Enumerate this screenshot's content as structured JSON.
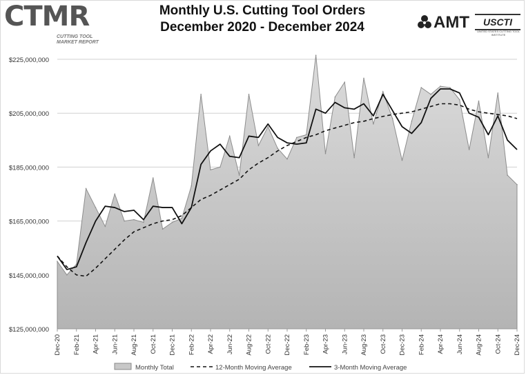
{
  "header": {
    "title_line1": "Monthly U.S. Cutting Tool Orders",
    "title_line2": "December 2020 - December 2024",
    "logo_left_brand": "CTMR",
    "logo_left_tagline": "CUTTING TOOL MARKET REPORT",
    "logo_right_amt": "AMT",
    "logo_right_usc": "USCTI",
    "logo_right_usc_sub": "UNITED STATES CUTTING TOOL INSTITUTE"
  },
  "chart_data": {
    "type": "area",
    "title": "Monthly U.S. Cutting Tool Orders December 2020 - December 2024",
    "xlabel": "",
    "ylabel": "",
    "ylim": [
      125000000,
      225000000
    ],
    "yticks": [
      125000000,
      145000000,
      165000000,
      185000000,
      205000000,
      225000000
    ],
    "ytick_labels": [
      "$125,000,000",
      "$145,000,000",
      "$165,000,000",
      "$185,000,000",
      "$205,000,000",
      "$225,000,000"
    ],
    "grid": true,
    "categories": [
      "Dec-20",
      "Jan-21",
      "Feb-21",
      "Mar-21",
      "Apr-21",
      "May-21",
      "Jun-21",
      "Jul-21",
      "Aug-21",
      "Sep-21",
      "Oct-21",
      "Nov-21",
      "Dec-21",
      "Jan-22",
      "Feb-22",
      "Mar-22",
      "Apr-22",
      "May-22",
      "Jun-22",
      "Jul-22",
      "Aug-22",
      "Sep-22",
      "Oct-22",
      "Nov-22",
      "Dec-22",
      "Jan-23",
      "Feb-23",
      "Mar-23",
      "Apr-23",
      "May-23",
      "Jun-23",
      "Jul-23",
      "Aug-23",
      "Sep-23",
      "Oct-23",
      "Nov-23",
      "Dec-23",
      "Jan-24",
      "Feb-24",
      "Mar-24",
      "Apr-24",
      "May-24",
      "Jun-24",
      "Jul-24",
      "Aug-24",
      "Sep-24",
      "Oct-24",
      "Nov-24",
      "Dec-24"
    ],
    "tick_labels": [
      "Dec-20",
      "Feb-21",
      "Apr-21",
      "Jun-21",
      "Aug-21",
      "Oct-21",
      "Dec-21",
      "Feb-22",
      "Apr-22",
      "Jun-22",
      "Aug-22",
      "Oct-22",
      "Dec-22",
      "Feb-23",
      "Apr-23",
      "Jun-23",
      "Aug-23",
      "Oct-23",
      "Dec-23",
      "Feb-24",
      "Apr-24",
      "Jun-24",
      "Aug-24",
      "Oct-24",
      "Dec-24"
    ],
    "legend_position": "bottom",
    "series": [
      {
        "name": "Monthly Total",
        "style": "area",
        "values": [
          150000000,
          145000000,
          149000000,
          177000000,
          170000000,
          163000000,
          175000000,
          165000000,
          165500000,
          164500000,
          181000000,
          162000000,
          164500000,
          166000000,
          178000000,
          212000000,
          184000000,
          185000000,
          196500000,
          182000000,
          212000000,
          193000000,
          200000000,
          192000000,
          188000000,
          196000000,
          197000000,
          226500000,
          190000000,
          211000000,
          216500000,
          188500000,
          218000000,
          201000000,
          213000000,
          203000000,
          187500000,
          202000000,
          214500000,
          212000000,
          215000000,
          214500000,
          210000000,
          191500000,
          209500000,
          188500000,
          212500000,
          182000000,
          178500000
        ]
      },
      {
        "name": "12-Month Moving Average",
        "style": "dashed",
        "values": [
          152000000,
          148000000,
          145000000,
          144500000,
          147500000,
          151000000,
          154500000,
          158000000,
          161000000,
          162500000,
          164000000,
          165000000,
          165500000,
          167000000,
          170000000,
          173000000,
          174500000,
          176500000,
          178500000,
          180500000,
          184000000,
          186500000,
          188500000,
          191000000,
          193000000,
          194500000,
          196000000,
          197000000,
          198500000,
          199500000,
          200500000,
          201500000,
          202000000,
          203000000,
          203800000,
          204500000,
          205000000,
          205500000,
          206500000,
          207500000,
          208500000,
          208500000,
          208000000,
          206500000,
          205500000,
          205000000,
          204500000,
          204000000,
          203000000
        ]
      },
      {
        "name": "3-Month Moving Average",
        "style": "solid",
        "values": [
          152000000,
          147000000,
          148000000,
          157000000,
          165000000,
          170500000,
          170000000,
          168500000,
          169000000,
          165500000,
          170500000,
          170000000,
          170000000,
          164000000,
          170000000,
          186000000,
          191000000,
          193500000,
          189000000,
          188500000,
          196500000,
          196000000,
          201000000,
          196000000,
          194000000,
          193500000,
          194000000,
          206500000,
          205000000,
          209000000,
          207000000,
          206500000,
          208500000,
          204000000,
          212000000,
          206000000,
          200000000,
          197500000,
          201500000,
          210500000,
          214000000,
          214000000,
          212500000,
          205000000,
          203500000,
          197000000,
          204000000,
          195000000,
          191500000
        ]
      }
    ]
  }
}
